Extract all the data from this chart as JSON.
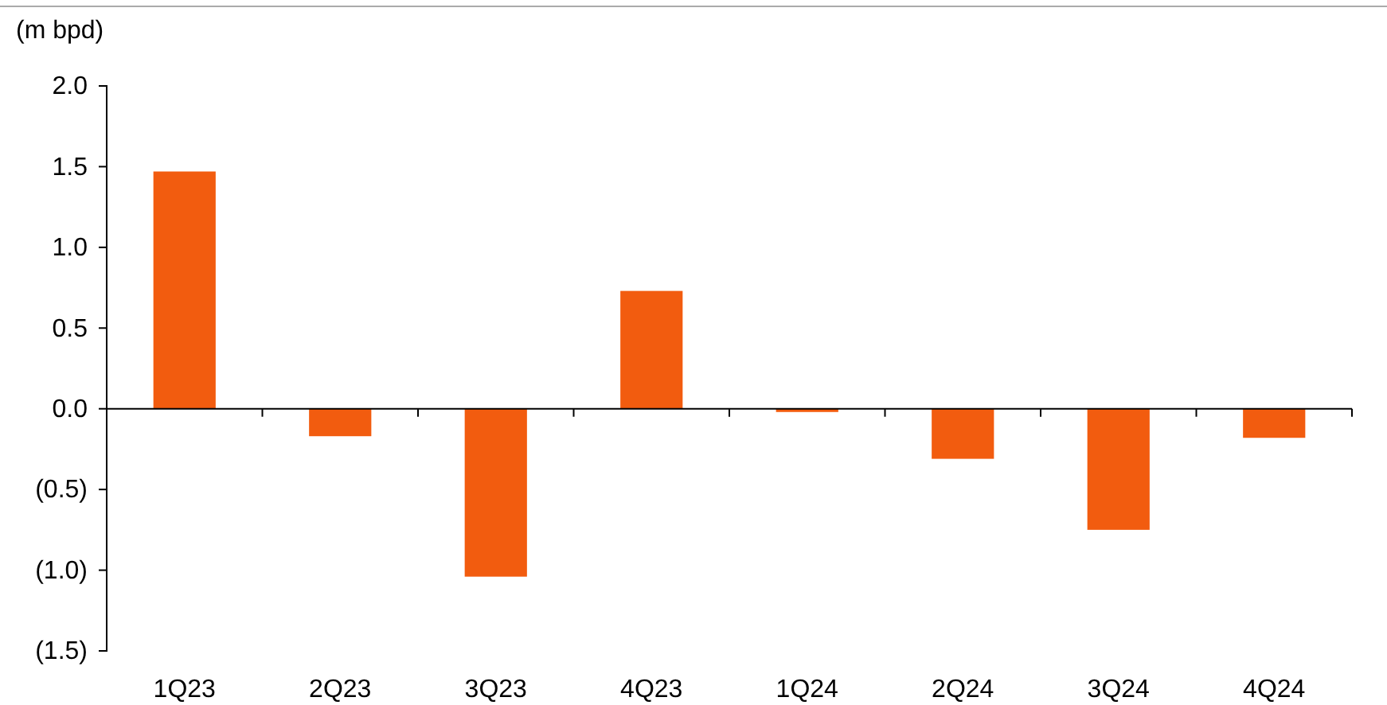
{
  "chart_data": {
    "type": "bar",
    "ylabel": "(m bpd)",
    "categories": [
      "1Q23",
      "2Q23",
      "3Q23",
      "4Q23",
      "1Q24",
      "2Q24",
      "3Q24",
      "4Q24"
    ],
    "values": [
      1.47,
      -0.17,
      -1.04,
      0.73,
      -0.02,
      -0.31,
      -0.75,
      -0.18
    ],
    "color": "#f25c0f",
    "ylim": [
      -1.5,
      2.0
    ],
    "yticks": [
      {
        "value": -1.5,
        "label": "(1.5)"
      },
      {
        "value": -1.0,
        "label": "(1.0)"
      },
      {
        "value": -0.5,
        "label": "(0.5)"
      },
      {
        "value": 0,
        "label": "0.0"
      },
      {
        "value": 0.5,
        "label": "0.5"
      },
      {
        "value": 1.0,
        "label": "1.0"
      },
      {
        "value": 1.5,
        "label": "1.5"
      },
      {
        "value": 2.0,
        "label": "2.0"
      }
    ]
  }
}
